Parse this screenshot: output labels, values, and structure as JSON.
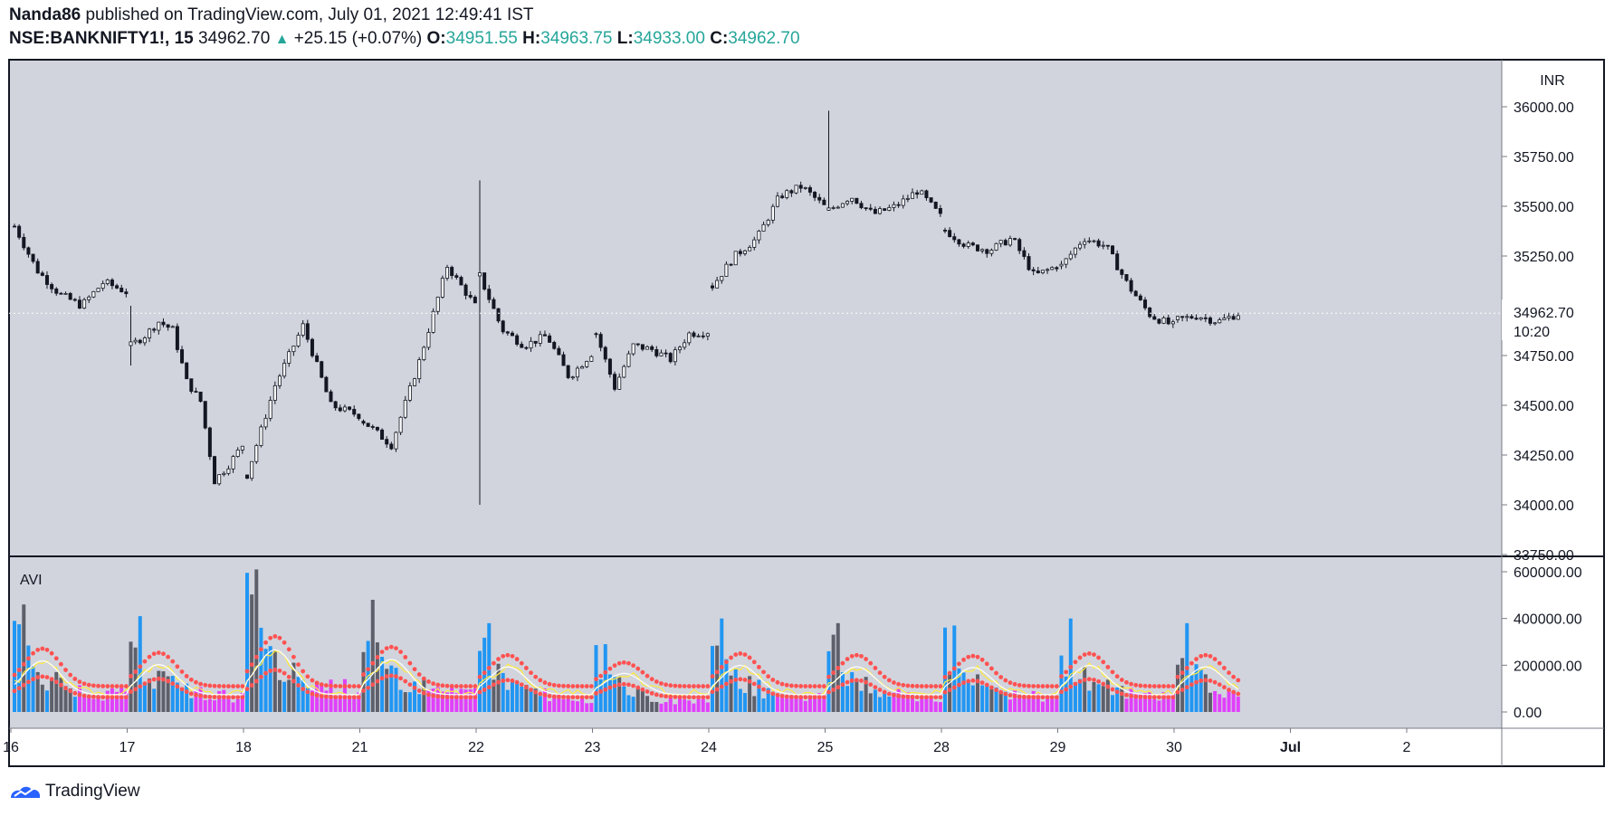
{
  "header": {
    "publisher": "Nanda86",
    "published_text": "published on TradingView.com, July 01, 2021 12:49:41 IST",
    "symbol": "NSE:BANKNIFTY1!, 15",
    "last": "34962.70",
    "change": "+25.15 (+0.07%)",
    "o_label": "O:",
    "o_value": "34951.55",
    "h_label": "H:",
    "h_value": "34963.75",
    "l_label": "L:",
    "l_value": "34933.00",
    "c_label": "C:",
    "c_value": "34962.70"
  },
  "brand": {
    "name": "TradingView"
  },
  "colors": {
    "pane_bg": "#d1d4dc",
    "candle": "#131722",
    "volume_blue": "#2196f3",
    "volume_magenta": "#e040fb",
    "volume_gray": "#5d606b",
    "avg_red": "#ff5252",
    "avg_yellow": "#ffeb3b",
    "avg_white": "#ffffff",
    "change_up": "#26a69a"
  },
  "chart_data": {
    "type": "candlestick",
    "currency": "INR",
    "price_axis": {
      "ticks": [
        "36000.00",
        "35750.00",
        "35500.00",
        "35250.00",
        "35000.00",
        "34750.00",
        "34500.00",
        "34250.00",
        "34000.00",
        "33750.00"
      ],
      "range": [
        33730,
        36110
      ]
    },
    "last_price_label": "34962.70",
    "last_price_countdown": "10:20",
    "last_price_value": 34962.7,
    "x_ticks": [
      "16",
      "17",
      "18",
      "21",
      "22",
      "23",
      "24",
      "25",
      "28",
      "29",
      "30",
      "Jul",
      "2"
    ],
    "day_path": [
      [
        35400,
        35180,
        35060,
        35000,
        35120,
        35070
      ],
      [
        34800,
        34850,
        34920,
        34880,
        34620,
        34520,
        34120,
        34200,
        34300
      ],
      [
        34150,
        34600,
        34900,
        34500,
        34450
      ],
      [
        34420,
        34300,
        34720,
        35200,
        35000
      ],
      [
        35150,
        34880,
        34800,
        34850,
        34640,
        34760
      ],
      [
        34860,
        34590,
        34800,
        34780,
        34730,
        34860,
        34870
      ],
      [
        35100,
        35250,
        35340,
        35550,
        35600,
        35500
      ],
      [
        35480,
        35550,
        35460,
        35500,
        35580,
        35450
      ],
      [
        35380,
        35300,
        35280,
        35340,
        35150,
        35200
      ],
      [
        35200,
        35340,
        35300,
        35100,
        34950,
        34900
      ],
      [
        34930,
        34950,
        34920,
        34960
      ]
    ],
    "spikes": [
      {
        "day": 1,
        "index": 0,
        "high": 35000,
        "low": 34700
      },
      {
        "day": 4,
        "index": 0,
        "high": 35630,
        "low": 34000
      },
      {
        "day": 7,
        "index": 0,
        "high": 35980,
        "low": 35500
      }
    ],
    "indicator": {
      "name": "AVI",
      "axis_ticks": [
        "600000.00",
        "400000.00",
        "200000.00",
        "0.00"
      ],
      "range": [
        0,
        640000
      ],
      "daily_volume_peaks": [
        460000,
        410000,
        610000,
        480000,
        380000,
        290000,
        400000,
        380000,
        370000,
        400000,
        380000
      ],
      "series": [
        "volume",
        "avg_white",
        "avg_yellow",
        "avg_red_upper",
        "avg_red_lower"
      ]
    }
  }
}
